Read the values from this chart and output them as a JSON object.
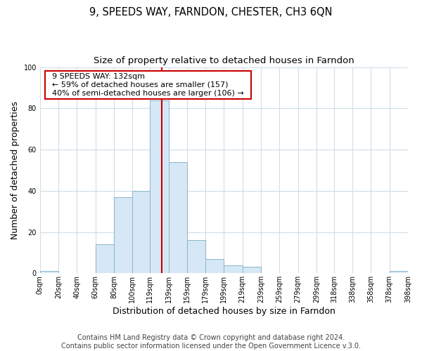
{
  "title": "9, SPEEDS WAY, FARNDON, CHESTER, CH3 6QN",
  "subtitle": "Size of property relative to detached houses in Farndon",
  "xlabel": "Distribution of detached houses by size in Farndon",
  "ylabel": "Number of detached properties",
  "bin_edges": [
    0,
    20,
    40,
    60,
    80,
    100,
    119,
    139,
    159,
    179,
    199,
    219,
    239,
    259,
    279,
    299,
    318,
    338,
    358,
    378,
    398
  ],
  "bin_counts": [
    1,
    0,
    0,
    14,
    37,
    40,
    84,
    54,
    16,
    7,
    4,
    3,
    0,
    0,
    0,
    0,
    0,
    0,
    0,
    1
  ],
  "bar_color": "#d6e8f5",
  "bar_edge_color": "#8ab4cc",
  "vline_x": 132,
  "vline_color": "#cc0000",
  "ylim": [
    0,
    100
  ],
  "annotation_title": "9 SPEEDS WAY: 132sqm",
  "annotation_line1": "← 59% of detached houses are smaller (157)",
  "annotation_line2": "40% of semi-detached houses are larger (106) →",
  "annotation_box_facecolor": "#ffffff",
  "annotation_box_edgecolor": "#cc0000",
  "tick_labels": [
    "0sqm",
    "20sqm",
    "40sqm",
    "60sqm",
    "80sqm",
    "100sqm",
    "119sqm",
    "139sqm",
    "159sqm",
    "179sqm",
    "199sqm",
    "219sqm",
    "239sqm",
    "259sqm",
    "279sqm",
    "299sqm",
    "318sqm",
    "338sqm",
    "358sqm",
    "378sqm",
    "398sqm"
  ],
  "footer_line1": "Contains HM Land Registry data © Crown copyright and database right 2024.",
  "footer_line2": "Contains public sector information licensed under the Open Government Licence v.3.0.",
  "plot_bg_color": "#ffffff",
  "fig_bg_color": "#ffffff",
  "grid_color": "#d0dde8",
  "title_fontsize": 10.5,
  "subtitle_fontsize": 9.5,
  "axis_label_fontsize": 9,
  "tick_fontsize": 7,
  "annotation_fontsize": 8,
  "footer_fontsize": 7
}
